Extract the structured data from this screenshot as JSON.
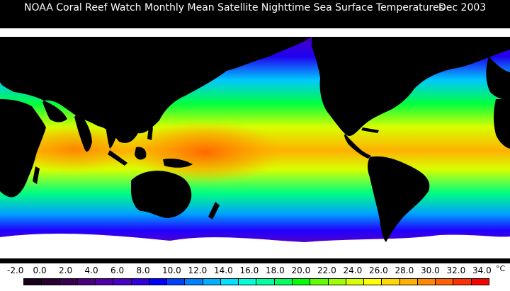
{
  "title": {
    "text": "NOAA Coral Reef Watch Monthly Mean Satellite Nighttime Sea Surface Temperatures",
    "date": "Dec 2003"
  },
  "legend": {
    "unit": "°C",
    "ticks": [
      "-2.0",
      "0.0",
      "2.0",
      "4.0",
      "6.0",
      "8.0",
      "10.0",
      "12.0",
      "14.0",
      "16.0",
      "18.0",
      "20.0",
      "22.0",
      "24.0",
      "26.0",
      "28.0",
      "30.0",
      "32.0",
      "34.0"
    ],
    "colors": [
      "#1a001a",
      "#2a0030",
      "#3a0050",
      "#4a0080",
      "#5000a8",
      "#4a00c8",
      "#3000e0",
      "#0000ff",
      "#0040ff",
      "#0080ff",
      "#00b0ff",
      "#00e0ff",
      "#00ffd8",
      "#00ffa0",
      "#00ff60",
      "#00ff00",
      "#60ff00",
      "#a0ff00",
      "#d8ff00",
      "#ffff00",
      "#ffd800",
      "#ffb000",
      "#ff8800",
      "#ff6000",
      "#ff3000",
      "#ff0000"
    ]
  }
}
